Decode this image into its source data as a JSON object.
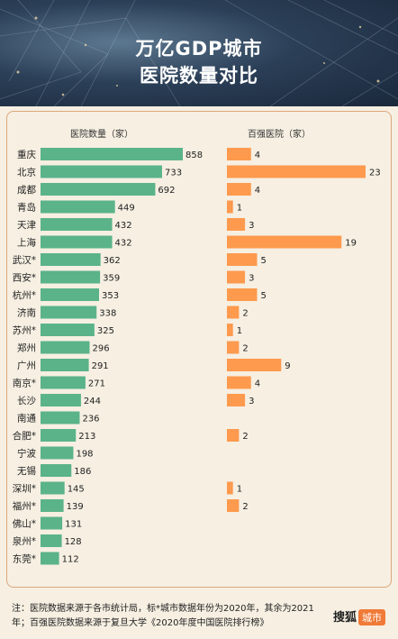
{
  "title_line1": "万亿GDP城市",
  "title_line2": "医院数量对比",
  "colors": {
    "green": "#5bb38a",
    "orange": "#fd9a4e",
    "border": "#dca77b"
  },
  "chart_data": [
    {
      "type": "bar",
      "orientation": "horizontal",
      "title": "医院数量（家）",
      "categories": [
        "重庆",
        "北京",
        "成都",
        "青岛",
        "天津",
        "上海",
        "武汉*",
        "西安*",
        "杭州*",
        "济南",
        "苏州*",
        "郑州",
        "广州",
        "南京*",
        "长沙",
        "南通",
        "合肥*",
        "宁波",
        "无锡",
        "深圳*",
        "福州*",
        "佛山*",
        "泉州*",
        "东莞*"
      ],
      "values": [
        858,
        733,
        692,
        449,
        432,
        432,
        362,
        359,
        353,
        338,
        325,
        296,
        291,
        271,
        244,
        236,
        213,
        198,
        186,
        145,
        139,
        131,
        128,
        112
      ]
    },
    {
      "type": "bar",
      "orientation": "horizontal",
      "title": "百强医院（家）",
      "categories": [
        "重庆",
        "北京",
        "成都",
        "青岛",
        "天津",
        "上海",
        "武汉*",
        "西安*",
        "杭州*",
        "济南",
        "苏州*",
        "郑州",
        "广州",
        "南京*",
        "长沙",
        "南通",
        "合肥*",
        "宁波",
        "无锡",
        "深圳*",
        "福州*",
        "佛山*",
        "泉州*",
        "东莞*"
      ],
      "values": [
        4,
        23,
        4,
        1,
        3,
        19,
        5,
        3,
        5,
        2,
        1,
        2,
        9,
        4,
        3,
        null,
        2,
        null,
        null,
        1,
        2,
        null,
        null,
        null
      ]
    }
  ],
  "footnote": "注：医院数据来源于各市统计局，标*城市数据年份为2020年，其余为2021年；百强医院数据来源于复旦大学《2020年度中国医院排行榜》",
  "brand": {
    "name": "搜狐",
    "badge": "城市"
  }
}
